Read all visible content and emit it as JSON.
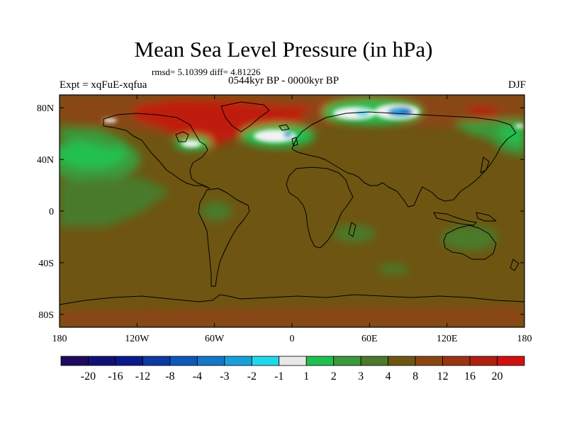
{
  "title": "Mean Sea Level Pressure (in hPa)",
  "stats": "rmsd= 5.10399 diff= 4.81226",
  "experiment": "Expt = xqFuE-xqfua",
  "period": "0544kyr BP - 0000kyr BP",
  "season": "DJF",
  "map": {
    "lon_range": [
      -180,
      180
    ],
    "lat_range": [
      -90,
      90
    ],
    "x_ticks": [
      {
        "lon": -180,
        "label": "180"
      },
      {
        "lon": -120,
        "label": "120W"
      },
      {
        "lon": -60,
        "label": "60W"
      },
      {
        "lon": 0,
        "label": "0"
      },
      {
        "lon": 60,
        "label": "60E"
      },
      {
        "lon": 120,
        "label": "120E"
      },
      {
        "lon": 180,
        "label": "180"
      }
    ],
    "y_ticks": [
      {
        "lat": 80,
        "label": "80N"
      },
      {
        "lat": 40,
        "label": "40N"
      },
      {
        "lat": 0,
        "label": "0"
      },
      {
        "lat": -40,
        "label": "40S"
      },
      {
        "lat": -80,
        "label": "80S"
      }
    ],
    "background_color": "#6e5512"
  },
  "colorbar": {
    "colors": [
      "#1e0a60",
      "#111175",
      "#0a1a8a",
      "#0b3aa0",
      "#0f58b8",
      "#1478c8",
      "#1aa0d8",
      "#20d8ec",
      "#e8e8e8",
      "#20c050",
      "#3a9a3a",
      "#4a7a2a",
      "#6e5512",
      "#8a4612",
      "#9a3412",
      "#b02010",
      "#d01010"
    ],
    "labels": [
      "-20",
      "-16",
      "-12",
      "-8",
      "-4",
      "-3",
      "-2",
      "-1",
      "1",
      "2",
      "3",
      "4",
      "8",
      "12",
      "16",
      "20"
    ]
  }
}
